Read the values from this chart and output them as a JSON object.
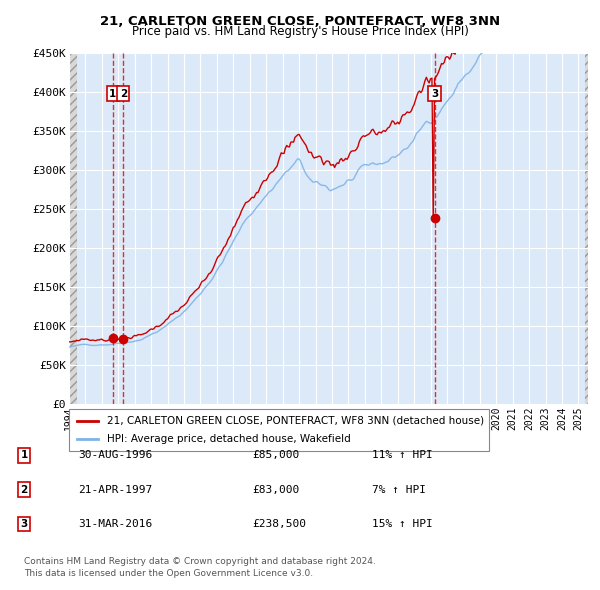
{
  "title_line1": "21, CARLETON GREEN CLOSE, PONTEFRACT, WF8 3NN",
  "title_line2": "Price paid vs. HM Land Registry's House Price Index (HPI)",
  "sale_dates": [
    "1996-08-30",
    "1997-04-21",
    "2016-03-31"
  ],
  "sale_prices": [
    85000,
    83000,
    238500
  ],
  "sale_labels": [
    "1",
    "2",
    "3"
  ],
  "ylim": [
    0,
    450000
  ],
  "yticks": [
    0,
    50000,
    100000,
    150000,
    200000,
    250000,
    300000,
    350000,
    400000,
    450000
  ],
  "ytick_labels": [
    "£0",
    "£50K",
    "£100K",
    "£150K",
    "£200K",
    "£250K",
    "£300K",
    "£350K",
    "£400K",
    "£450K"
  ],
  "legend_line1": "21, CARLETON GREEN CLOSE, PONTEFRACT, WF8 3NN (detached house)",
  "legend_line2": "HPI: Average price, detached house, Wakefield",
  "table_data": [
    {
      "label": "1",
      "date": "30-AUG-1996",
      "price": "£85,000",
      "change": "11% ↑ HPI"
    },
    {
      "label": "2",
      "date": "21-APR-1997",
      "price": "£83,000",
      "change": "7% ↑ HPI"
    },
    {
      "label": "3",
      "date": "31-MAR-2016",
      "price": "£238,500",
      "change": "15% ↑ HPI"
    }
  ],
  "footnote": "Contains HM Land Registry data © Crown copyright and database right 2024.\nThis data is licensed under the Open Government Licence v3.0.",
  "plot_bg_color": "#dce9f8",
  "red_line_color": "#cc0000",
  "blue_line_color": "#7fb3e8",
  "marker_color": "#cc0000",
  "grid_color": "#ffffff",
  "vline_color": "#dd0000",
  "box_color": "#cc0000",
  "start_year": 1994,
  "end_year": 2025
}
